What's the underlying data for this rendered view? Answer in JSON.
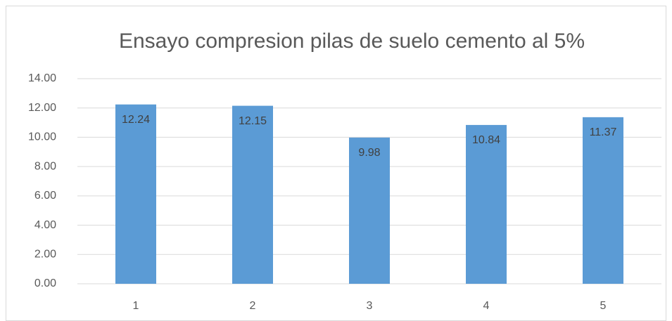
{
  "chart_data": {
    "type": "bar",
    "title": "Ensayo  compresion pilas de suelo cemento al 5%",
    "categories": [
      "1",
      "2",
      "3",
      "4",
      "5"
    ],
    "values": [
      12.24,
      12.15,
      9.98,
      10.84,
      11.37
    ],
    "color": "#5b9bd5",
    "ylim": [
      0,
      14
    ],
    "yticks": [
      {
        "value": 0,
        "label": "0.00"
      },
      {
        "value": 2,
        "label": "2.00"
      },
      {
        "value": 4,
        "label": "4.00"
      },
      {
        "value": 6,
        "label": "6.00"
      },
      {
        "value": 8,
        "label": "8.00"
      },
      {
        "value": 10,
        "label": "10.00"
      },
      {
        "value": 12,
        "label": "12.00"
      },
      {
        "value": 14,
        "label": "14.00"
      }
    ],
    "grid": true
  }
}
